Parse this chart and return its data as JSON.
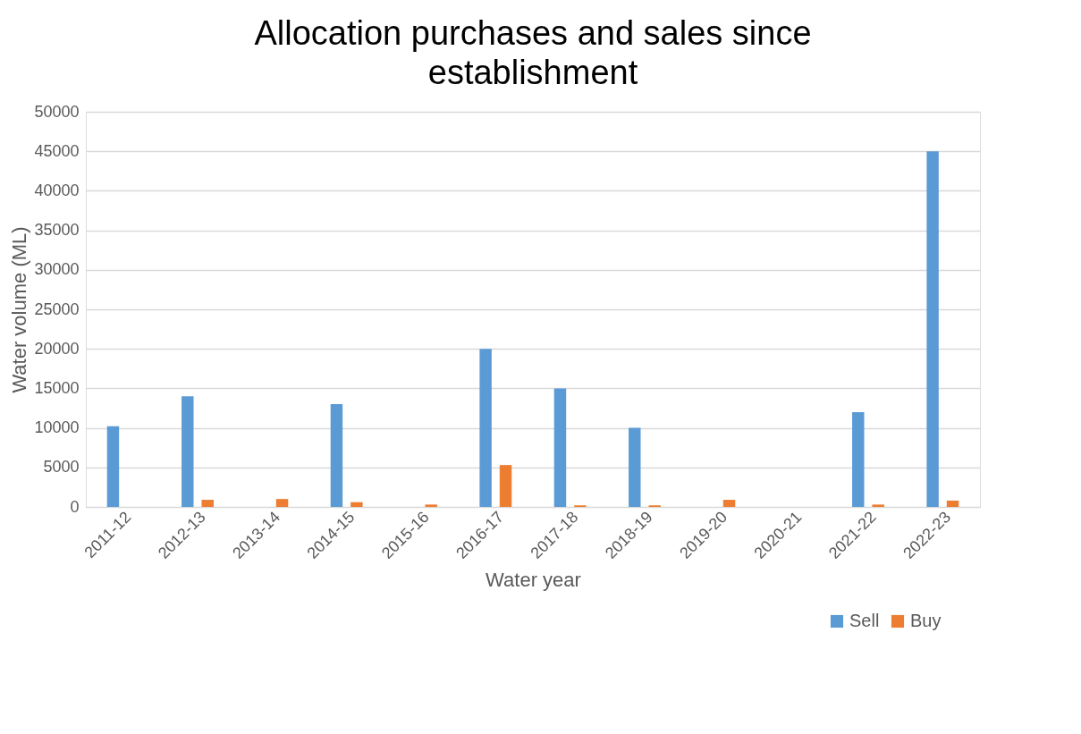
{
  "chart_data": {
    "type": "bar",
    "title": "Allocation purchases and sales since establishment",
    "xlabel": "Water year",
    "ylabel": "Water volume (ML)",
    "categories": [
      "2011-12",
      "2012-13",
      "2013-14",
      "2014-15",
      "2015-16",
      "2016-17",
      "2017-18",
      "2018-19",
      "2019-20",
      "2020-21",
      "2021-22",
      "2022-23"
    ],
    "series": [
      {
        "name": "Sell",
        "color": "#5b9bd5",
        "values": [
          10200,
          14000,
          0,
          13000,
          0,
          20000,
          15000,
          10000,
          0,
          0,
          12000,
          45000
        ]
      },
      {
        "name": "Buy",
        "color": "#ed7d31",
        "values": [
          0,
          900,
          1000,
          600,
          300,
          5300,
          200,
          200,
          900,
          0,
          300,
          800
        ]
      }
    ],
    "ylim": [
      0,
      50000
    ],
    "yticks": [
      0,
      5000,
      10000,
      15000,
      20000,
      25000,
      30000,
      35000,
      40000,
      45000,
      50000
    ],
    "grid": "y",
    "legend": "bottom right"
  }
}
